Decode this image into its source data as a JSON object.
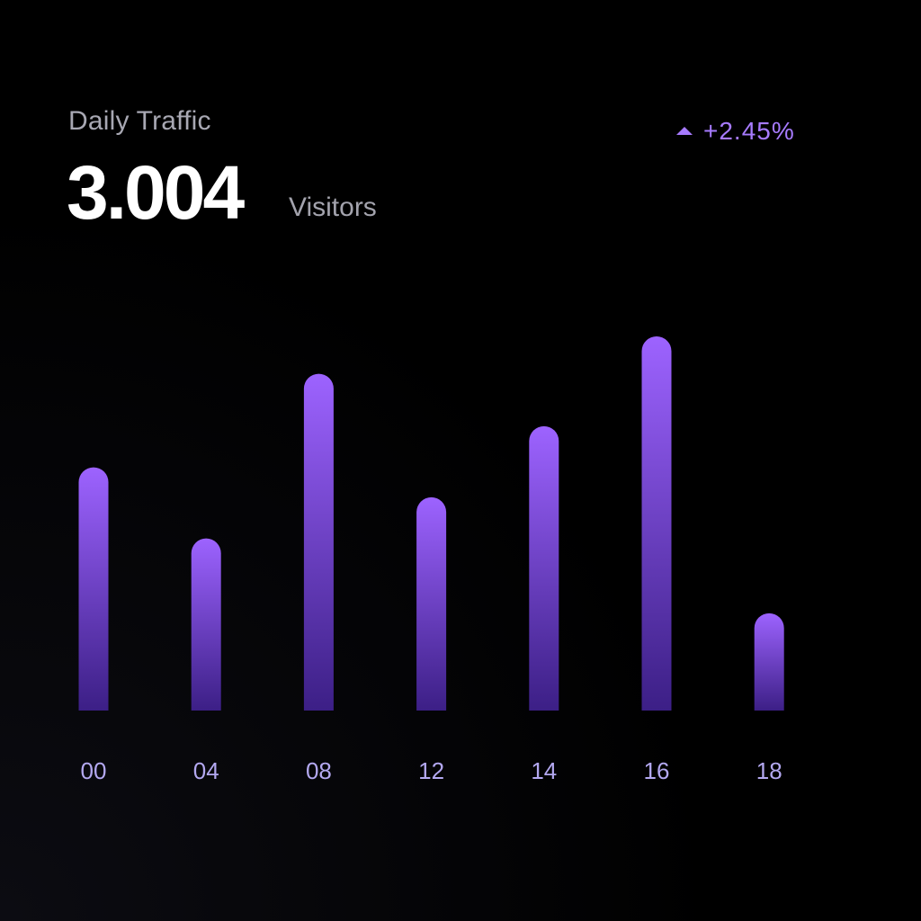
{
  "header": {
    "title": "Daily Traffic",
    "visitor_count": "3.004",
    "visitor_unit": "Visitors",
    "change_label": "+2.45%"
  },
  "colors": {
    "bar_top": "#9d63ff",
    "bar_bottom": "#3c1f86",
    "accent": "#a77bff"
  },
  "chart_data": {
    "type": "bar",
    "title": "Daily Traffic",
    "categories": [
      "00",
      "04",
      "08",
      "12",
      "14",
      "16",
      "18"
    ],
    "values": [
      65,
      46,
      90,
      57,
      76,
      100,
      26
    ],
    "ylim": [
      0,
      100
    ],
    "xlabel": "",
    "ylabel": "",
    "grid": false,
    "legend": "none"
  }
}
